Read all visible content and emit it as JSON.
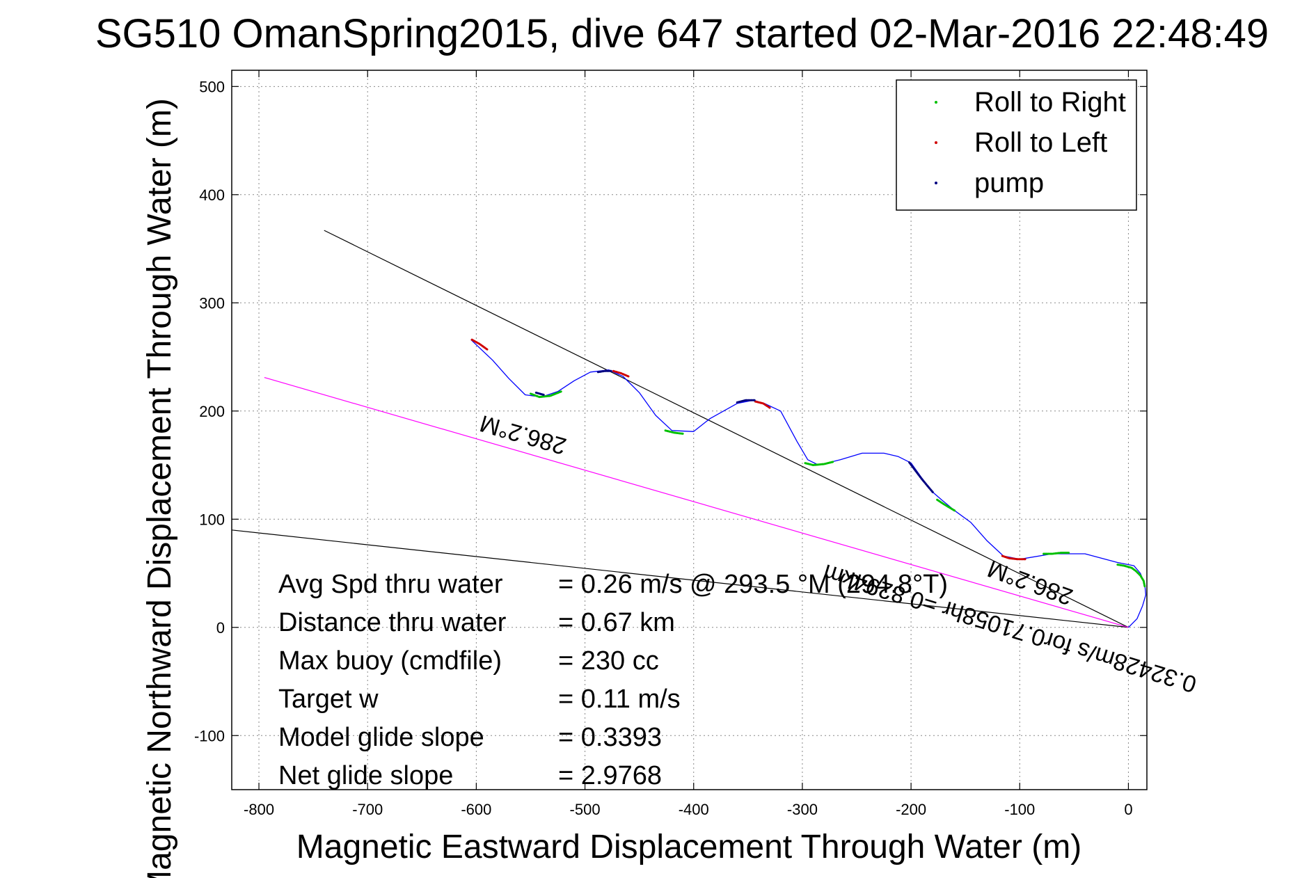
{
  "chart_data": {
    "type": "line",
    "title": "SG510 OmanSpring2015, dive 647 started 02-Mar-2016 22:48:49",
    "xlabel": "Magnetic Eastward Displacement Through Water (m)",
    "ylabel": "Magnetic Northward Displacement Through Water (m)",
    "xlim": [
      -825,
      17
    ],
    "ylim": [
      -150,
      515
    ],
    "grid": true,
    "legend_position": "top-right",
    "x_ticks": [
      "-800",
      "-700",
      "-600",
      "-500",
      "-400",
      "-300",
      "-200",
      "-100",
      "0"
    ],
    "y_ticks": [
      "-100",
      "0",
      "100",
      "200",
      "300",
      "400",
      "500"
    ],
    "x_tick_values": [
      -800,
      -700,
      -600,
      -500,
      -400,
      -300,
      -200,
      -100,
      0
    ],
    "y_tick_values": [
      -100,
      0,
      100,
      200,
      300,
      400,
      500
    ],
    "legend": [
      "Roll to Right",
      "Roll to Left",
      "pump"
    ],
    "series": [
      {
        "name": "track",
        "color": "#0000ff",
        "x": [
          0,
          8,
          13,
          16,
          15,
          11,
          5,
          -10,
          -40,
          -70,
          -100,
          -115,
          -130,
          -145,
          -160,
          -172,
          -180,
          -190,
          -200,
          -212,
          -225,
          -245,
          -265,
          -285,
          -295,
          -305,
          -320,
          -335,
          -345,
          -360,
          -385,
          -400,
          -420,
          -435,
          -450,
          -465,
          -478,
          -495,
          -510,
          -525,
          -540,
          -555,
          -570,
          -585,
          -605
        ],
        "y": [
          0,
          8,
          20,
          30,
          40,
          50,
          57,
          60,
          68,
          68,
          63,
          66,
          80,
          97,
          108,
          118,
          125,
          138,
          152,
          158,
          161,
          161,
          155,
          150,
          155,
          172,
          200,
          207,
          210,
          207,
          193,
          181,
          182,
          196,
          217,
          232,
          238,
          236,
          228,
          218,
          213,
          215,
          230,
          247,
          266
        ]
      },
      {
        "name": "Roll to Right",
        "color": "#00c000",
        "segments": [
          {
            "x": [
              15,
              14,
              11,
              7,
              3,
              -4,
              -10
            ],
            "y": [
              38,
              43,
              48,
              52,
              55,
              57,
              58
            ]
          },
          {
            "x": [
              -55,
              -62,
              -70,
              -78
            ],
            "y": [
              69,
              69,
              68,
              68
            ]
          },
          {
            "x": [
              -160,
              -165,
              -170,
              -176
            ],
            "y": [
              108,
              111,
              114,
              118
            ]
          },
          {
            "x": [
              -272,
              -280,
              -290,
              -298
            ],
            "y": [
              153,
              151,
              150,
              152
            ]
          },
          {
            "x": [
              -410,
              -418,
              -426
            ],
            "y": [
              179,
              180,
              182
            ]
          },
          {
            "x": [
              -522,
              -532,
              -542,
              -550
            ],
            "y": [
              218,
              214,
              213,
              216
            ]
          }
        ]
      },
      {
        "name": "Roll to Left",
        "color": "#d00000",
        "segments": [
          {
            "x": [
              -95,
              -102,
              -110,
              -116
            ],
            "y": [
              63,
              63,
              64,
              66
            ]
          },
          {
            "x": [
              -330,
              -336,
              -344
            ],
            "y": [
              203,
              207,
              209
            ]
          },
          {
            "x": [
              -460,
              -467,
              -474
            ],
            "y": [
              232,
              235,
              237
            ]
          },
          {
            "x": [
              -590,
              -597,
              -604
            ],
            "y": [
              257,
              262,
              266
            ]
          }
        ]
      },
      {
        "name": "pump",
        "color": "#000080",
        "segments": [
          {
            "x": [
              -180,
              -185,
              -190,
              -196,
              -202
            ],
            "y": [
              125,
              131,
              137,
              145,
              153
            ]
          },
          {
            "x": [
              -344,
              -352,
              -360
            ],
            "y": [
              210,
              210,
              208
            ]
          },
          {
            "x": [
              -476,
              -482,
              -488
            ],
            "y": [
              237,
              237,
              236
            ]
          },
          {
            "x": [
              -538,
              -545
            ],
            "y": [
              215,
              217
            ]
          }
        ]
      }
    ],
    "lines": [
      {
        "name": "heading-line-upper",
        "color": "#000000",
        "x": [
          0,
          -740
        ],
        "y": [
          0,
          367
        ]
      },
      {
        "name": "heading-line-lower",
        "color": "#000000",
        "x": [
          0,
          -825
        ],
        "y": [
          0,
          90
        ]
      },
      {
        "name": "magenta-line",
        "color": "#ff00ff",
        "x": [
          0,
          -795
        ],
        "y": [
          0,
          231
        ]
      }
    ],
    "annotations": [
      {
        "text": "286.2°M",
        "x": -555,
        "y": 185,
        "rotate": 196
      },
      {
        "text": "286.2°M",
        "x": -88,
        "y": 48,
        "rotate": 200
      },
      {
        "text": "0.32428m/s for0.71058hr =0.8294km",
        "x": -107,
        "y": 6,
        "rotate": 197
      }
    ],
    "stats": [
      {
        "label": "Avg Spd thru water",
        "value": "=  0.26 m/s @ 293.5 °M (294.8°T)"
      },
      {
        "label": "Distance thru water",
        "value": "=  0.67 km"
      },
      {
        "label": "Max buoy (cmdfile)",
        "value": "= 230 cc"
      },
      {
        "label": "Target w",
        "value": "= 0.11 m/s"
      },
      {
        "label": "Model glide slope",
        "value": "= 0.3393"
      },
      {
        "label": "Net glide slope",
        "value": "= 2.9768"
      }
    ]
  }
}
